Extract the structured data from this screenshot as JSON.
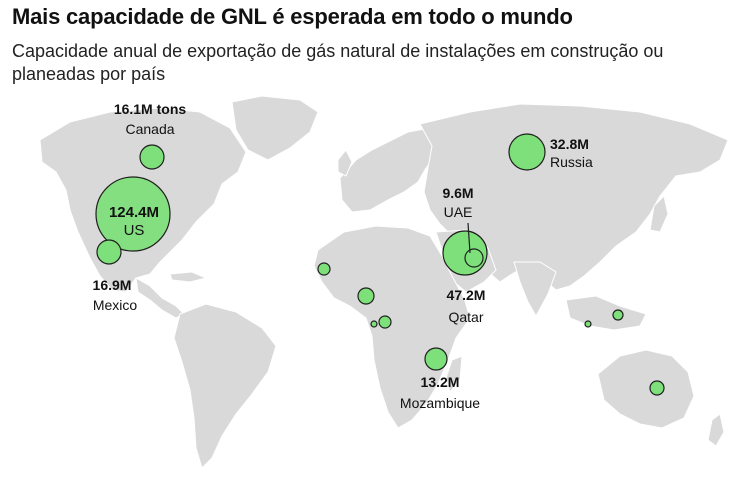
{
  "header": {
    "title": "Mais capacidade de GNL é esperada em todo o mundo",
    "subtitle": "Capacidade anual de exportação de gás natural de instalações em construção ou planeadas por país"
  },
  "colors": {
    "land": "#d9d9d9",
    "bubble": "#7de07a",
    "bubble_stroke": "#1f1f1f",
    "background": "#ffffff"
  },
  "bubbles": {
    "canada": {
      "value": "16.1M tons",
      "name": "Canada",
      "capacity": 16.1
    },
    "us": {
      "value": "124.4M",
      "name": "US",
      "capacity": 124.4
    },
    "mexico": {
      "value": "16.9M",
      "name": "Mexico",
      "capacity": 16.9
    },
    "russia": {
      "value": "32.8M",
      "name": "Russia",
      "capacity": 32.8
    },
    "uae": {
      "value": "9.6M",
      "name": "UAE",
      "capacity": 9.6
    },
    "qatar": {
      "value": "47.2M",
      "name": "Qatar",
      "capacity": 47.2
    },
    "mozambique": {
      "value": "13.2M",
      "name": "Mozambique",
      "capacity": 13.2
    }
  }
}
